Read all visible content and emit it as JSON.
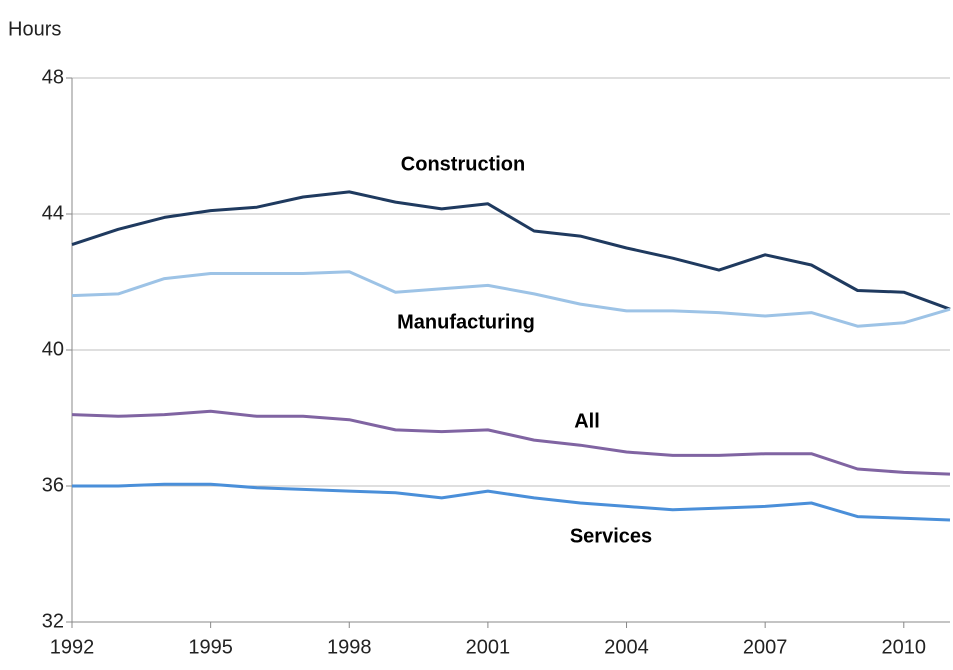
{
  "chart_data": {
    "type": "line",
    "y_label": "Hours",
    "x": [
      1992,
      1993,
      1994,
      1995,
      1996,
      1997,
      1998,
      1999,
      2000,
      2001,
      2002,
      2003,
      2004,
      2005,
      2006,
      2007,
      2008,
      2009,
      2010,
      2011
    ],
    "series": [
      {
        "name": "Construction",
        "color": "#1f3a5f",
        "values": [
          43.1,
          43.55,
          43.9,
          44.1,
          44.2,
          44.5,
          44.65,
          44.35,
          44.15,
          44.3,
          43.5,
          43.35,
          43.0,
          42.7,
          42.35,
          42.8,
          42.5,
          41.75,
          41.7,
          41.2
        ]
      },
      {
        "name": "Manufacturing",
        "color": "#9dc3e6",
        "values": [
          41.6,
          41.65,
          42.1,
          42.25,
          42.25,
          42.25,
          42.3,
          41.7,
          41.8,
          41.9,
          41.65,
          41.35,
          41.15,
          41.15,
          41.1,
          41.0,
          41.1,
          40.7,
          40.8,
          41.2
        ]
      },
      {
        "name": "All",
        "color": "#8064a2",
        "values": [
          38.1,
          38.05,
          38.1,
          38.2,
          38.05,
          38.05,
          37.95,
          37.65,
          37.6,
          37.65,
          37.35,
          37.2,
          37.0,
          36.9,
          36.9,
          36.95,
          36.95,
          36.5,
          36.4,
          36.35
        ]
      },
      {
        "name": "Services",
        "color": "#4a8fd9",
        "values": [
          36.0,
          36.0,
          36.05,
          36.05,
          35.95,
          35.9,
          35.85,
          35.8,
          35.65,
          35.85,
          35.65,
          35.5,
          35.4,
          35.3,
          35.35,
          35.4,
          35.5,
          35.1,
          35.05,
          35.0
        ]
      }
    ],
    "xlim": [
      1992,
      2011
    ],
    "xticks": [
      1992,
      1995,
      1998,
      2001,
      2004,
      2007,
      2010
    ],
    "ylim": [
      32,
      48
    ],
    "yticks": [
      32,
      36,
      40,
      44,
      48
    ],
    "grid": true
  }
}
